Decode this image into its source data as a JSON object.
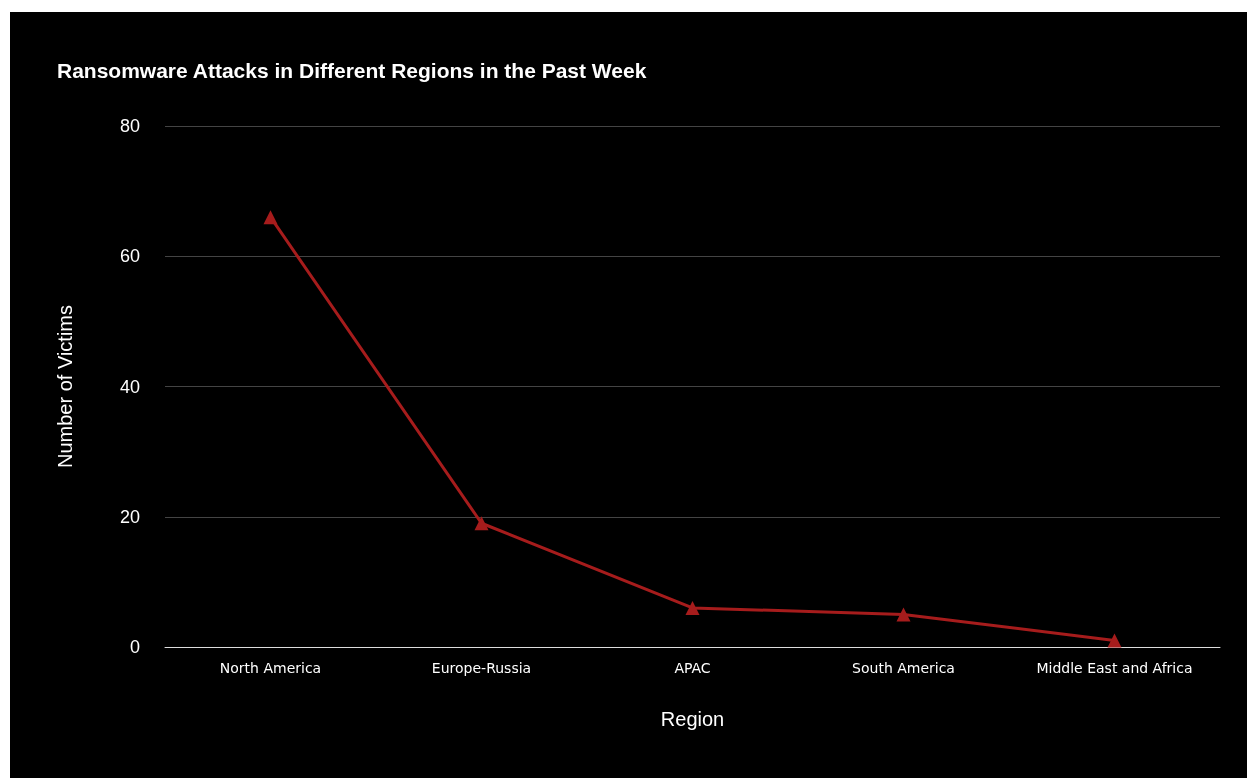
{
  "chart_data": {
    "type": "line",
    "title": "Ransomware Attacks in Different Regions in the Past Week",
    "xlabel": "Region",
    "ylabel": "Number of Victims",
    "categories": [
      "North America",
      "Europe-Russia",
      "APAC",
      "South America",
      "Middle East and Africa"
    ],
    "series": [
      {
        "color": "#a61c1c",
        "values": [
          66,
          19,
          6,
          5,
          1
        ]
      }
    ],
    "ylim": [
      0,
      80
    ],
    "yticks": [
      0,
      20,
      40,
      60,
      80
    ],
    "grid": "y",
    "marker": "triangle",
    "line_style": "solid"
  }
}
